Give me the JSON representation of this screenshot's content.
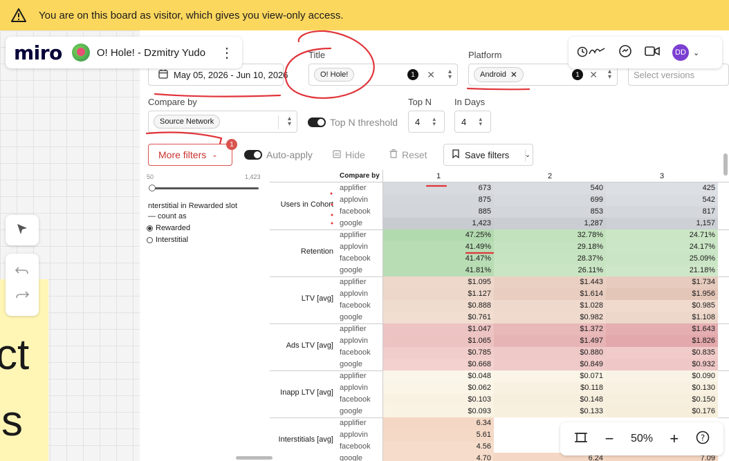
{
  "banner": {
    "text": "You are on this board as visitor, which gives you view-only access."
  },
  "board": {
    "logo": "miro",
    "title": "O! Hole! - Dzmitry Yudo"
  },
  "collab": {
    "user_initials": "DD"
  },
  "sticky": {
    "text_top": "ct",
    "text_bottom": "s"
  },
  "filters": {
    "date_range": "May 05, 2026 - Jun 10, 2026",
    "title_label": "Title",
    "title_chip": "O! Hole!",
    "title_count": "1",
    "platform_label": "Platform",
    "platform_chip": "Android",
    "platform_count": "1",
    "versions_placeholder": "Select versions",
    "compare_label": "Compare by",
    "compare_chip": "Source Network",
    "topn_threshold_label": "Top N threshold",
    "topn_label": "Top N",
    "topn_value": "4",
    "indays_label": "In Days",
    "indays_value": "4",
    "more_filters": "More filters",
    "more_filters_badge": "1",
    "auto_apply": "Auto-apply",
    "hide": "Hide",
    "reset": "Reset",
    "save_filters": "Save filters"
  },
  "sidepanel": {
    "slider_min": "50",
    "slider_max": "1,423",
    "interstitial_title": "nterstitial in Rewarded slot",
    "count_as": "— count as",
    "option_rewarded": "Rewarded",
    "option_interstitial": "Interstitial"
  },
  "table": {
    "compare_by_header": "Compare by",
    "day_headers": [
      "1",
      "2",
      "3"
    ],
    "networks": [
      "applifier",
      "applovin",
      "facebook",
      "google"
    ],
    "groups": [
      {
        "metric": "Users in Cohort",
        "rows": [
          [
            "673",
            "540",
            "425"
          ],
          [
            "875",
            "699",
            "542"
          ],
          [
            "885",
            "853",
            "817"
          ],
          [
            "1,423",
            "1,287",
            "1,157"
          ]
        ]
      },
      {
        "metric": "Retention",
        "rows": [
          [
            "47.25%",
            "32.78%",
            "24.71%"
          ],
          [
            "41.49%",
            "29.18%",
            "24.17%"
          ],
          [
            "41.47%",
            "28.37%",
            "25.09%"
          ],
          [
            "41.81%",
            "26.11%",
            "21.18%"
          ]
        ]
      },
      {
        "metric": "LTV [avg]",
        "rows": [
          [
            "$1.095",
            "$1.443",
            "$1.734"
          ],
          [
            "$1.127",
            "$1.614",
            "$1.956"
          ],
          [
            "$0.888",
            "$1.028",
            "$0.985"
          ],
          [
            "$0.761",
            "$0.982",
            "$1.108"
          ]
        ]
      },
      {
        "metric": "Ads LTV [avg]",
        "rows": [
          [
            "$1.047",
            "$1.372",
            "$1.643"
          ],
          [
            "$1.065",
            "$1.497",
            "$1.826"
          ],
          [
            "$0.785",
            "$0.880",
            "$0.835"
          ],
          [
            "$0.668",
            "$0.849",
            "$0.932"
          ]
        ]
      },
      {
        "metric": "Inapp LTV [avg]",
        "rows": [
          [
            "$0.048",
            "$0.071",
            "$0.090"
          ],
          [
            "$0.062",
            "$0.118",
            "$0.130"
          ],
          [
            "$0.103",
            "$0.148",
            "$0.150"
          ],
          [
            "$0.093",
            "$0.133",
            "$0.176"
          ]
        ]
      },
      {
        "metric": "Interstitials [avg]",
        "rows": [
          [
            "6.34",
            "",
            ""
          ],
          [
            "5.61",
            "",
            ""
          ],
          [
            "4.56",
            "",
            ""
          ],
          [
            "4.70",
            "6.24",
            "7.09"
          ]
        ]
      }
    ]
  },
  "zoom": {
    "level": "50%"
  },
  "colors": {
    "banner": "#fcd75e",
    "ink": "#e0343a",
    "brand": "#050038"
  }
}
